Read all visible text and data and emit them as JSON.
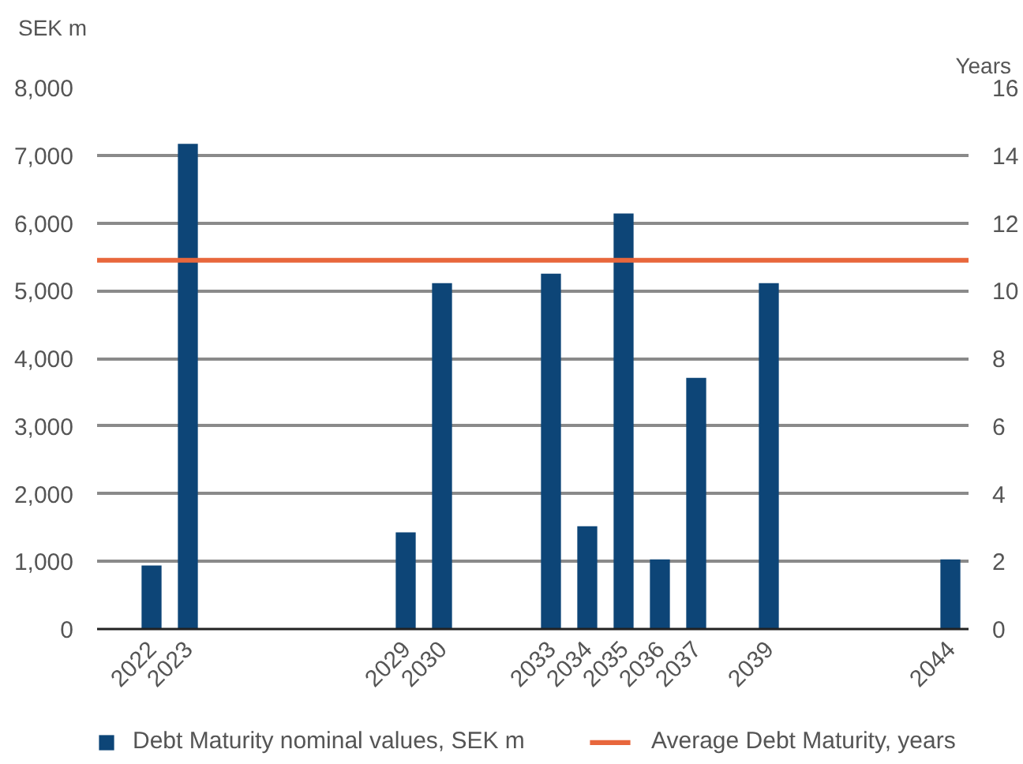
{
  "chart_data": {
    "type": "bar",
    "ylabel": "SEK m",
    "y2label": "Years",
    "categories": [
      null,
      "2022",
      "2023",
      null,
      null,
      null,
      null,
      null,
      "2029",
      "2030",
      null,
      null,
      "2033",
      "2034",
      "2035",
      "2036",
      "2037",
      null,
      "2039",
      null,
      null,
      null,
      null,
      "2044"
    ],
    "series": [
      {
        "name": "Debt Maturity nominal values, SEK m",
        "color": "#0d4577",
        "values": [
          null,
          940,
          7170,
          null,
          null,
          null,
          null,
          null,
          1430,
          5110,
          null,
          null,
          5250,
          1520,
          6140,
          1030,
          3710,
          null,
          5110,
          null,
          null,
          null,
          null,
          1030
        ]
      }
    ],
    "ylim": [
      0,
      8000
    ],
    "yticks": [
      0,
      {
        "value": 1000,
        "label": "1,000"
      },
      {
        "value": 2000,
        "label": "2,000"
      },
      {
        "value": 3000,
        "label": "3,000"
      },
      {
        "value": 4000,
        "label": "4,000"
      },
      {
        "value": 5000,
        "label": "5,000"
      },
      {
        "value": 6000,
        "label": "6,000"
      },
      {
        "value": 7000,
        "label": "7,000"
      },
      {
        "value": 8000,
        "label": "8,000"
      }
    ],
    "y2lim": [
      0,
      16
    ],
    "y2ticks": [
      0,
      2,
      4,
      6,
      8,
      10,
      12,
      14,
      16
    ],
    "ref_lines": [
      {
        "axis": "y2",
        "value": 10.9,
        "label": "Average Debt Maturity, years",
        "color": "#e8673c"
      }
    ],
    "grid": "y",
    "legend": "bottom"
  }
}
